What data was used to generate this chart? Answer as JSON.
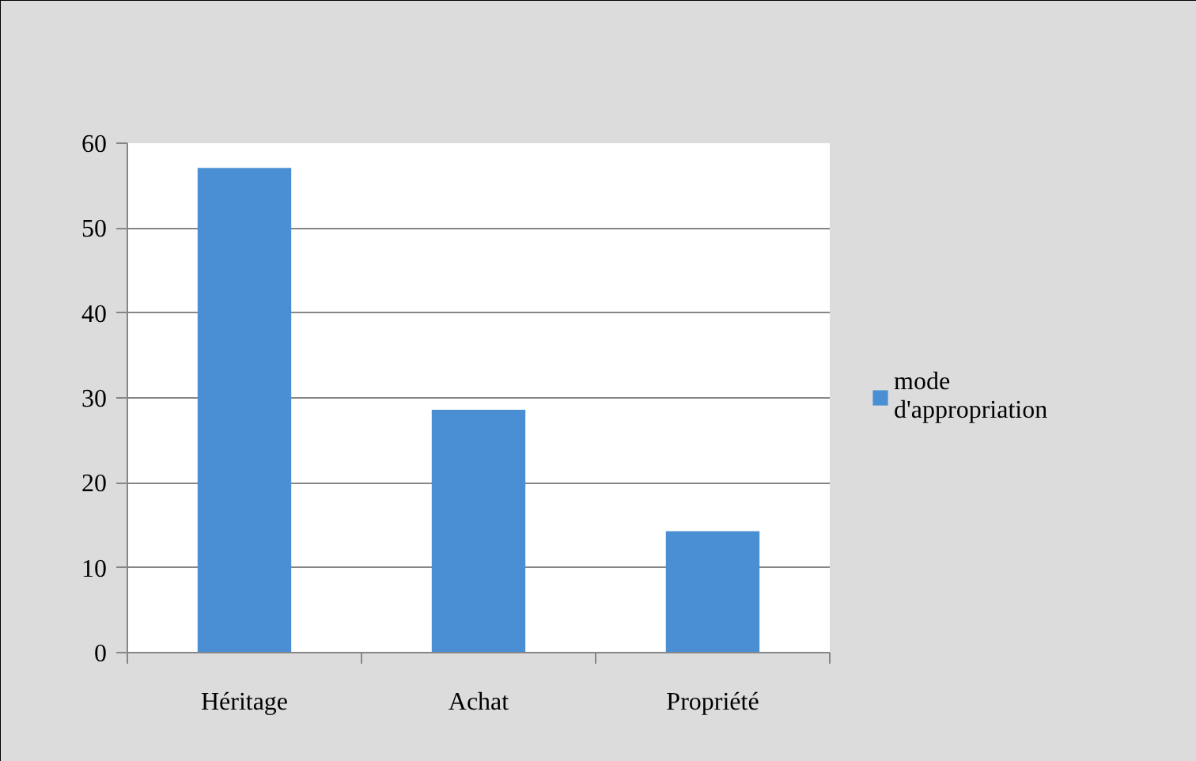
{
  "chart_data": {
    "type": "bar",
    "categories": [
      "Héritage",
      "Achat",
      "Propriété"
    ],
    "series": [
      {
        "name": "mode d'appropriation",
        "color": "#4a8fd4",
        "values": [
          57.1,
          28.6,
          14.3
        ]
      }
    ],
    "ylim": [
      0,
      60
    ],
    "yticks": [
      0,
      10,
      20,
      30,
      40,
      50,
      60
    ],
    "grid": "y",
    "legend": "right"
  }
}
